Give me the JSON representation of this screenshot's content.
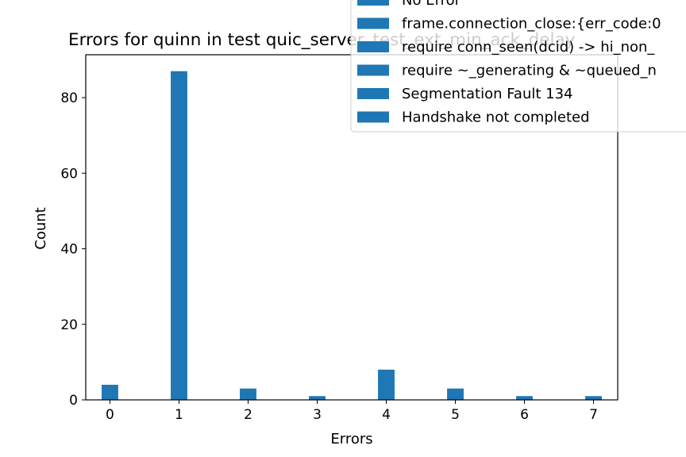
{
  "chart_data": {
    "type": "bar",
    "title": "Errors for quinn in test quic_server_test_ext_min_ack_delay",
    "xlabel": "Errors",
    "ylabel": "Count",
    "x": [
      0,
      1,
      2,
      3,
      4,
      5,
      6,
      7
    ],
    "x_tick_labels": [
      "0",
      "1",
      "2",
      "3",
      "4",
      "5",
      "6",
      "7"
    ],
    "values": [
      4,
      87,
      3,
      1,
      8,
      3,
      1,
      1
    ],
    "xlim": [
      -0.35,
      7.35
    ],
    "ylim": [
      0,
      91.35
    ],
    "y_ticks": [
      0,
      20,
      40,
      60,
      80
    ],
    "y_tick_labels": [
      "0",
      "20",
      "40",
      "60",
      "80"
    ],
    "grid": false,
    "bar_color": "#1f77b4",
    "legend": {
      "placement": "upper-right",
      "entries": [
        "No Error",
        "frame.connection_close:{err_code:0",
        "require conn_seen(dcid) -> hi_non_",
        "require ~_generating & ~queued_n",
        "Segmentation Fault 134",
        "Handshake not completed"
      ]
    }
  }
}
